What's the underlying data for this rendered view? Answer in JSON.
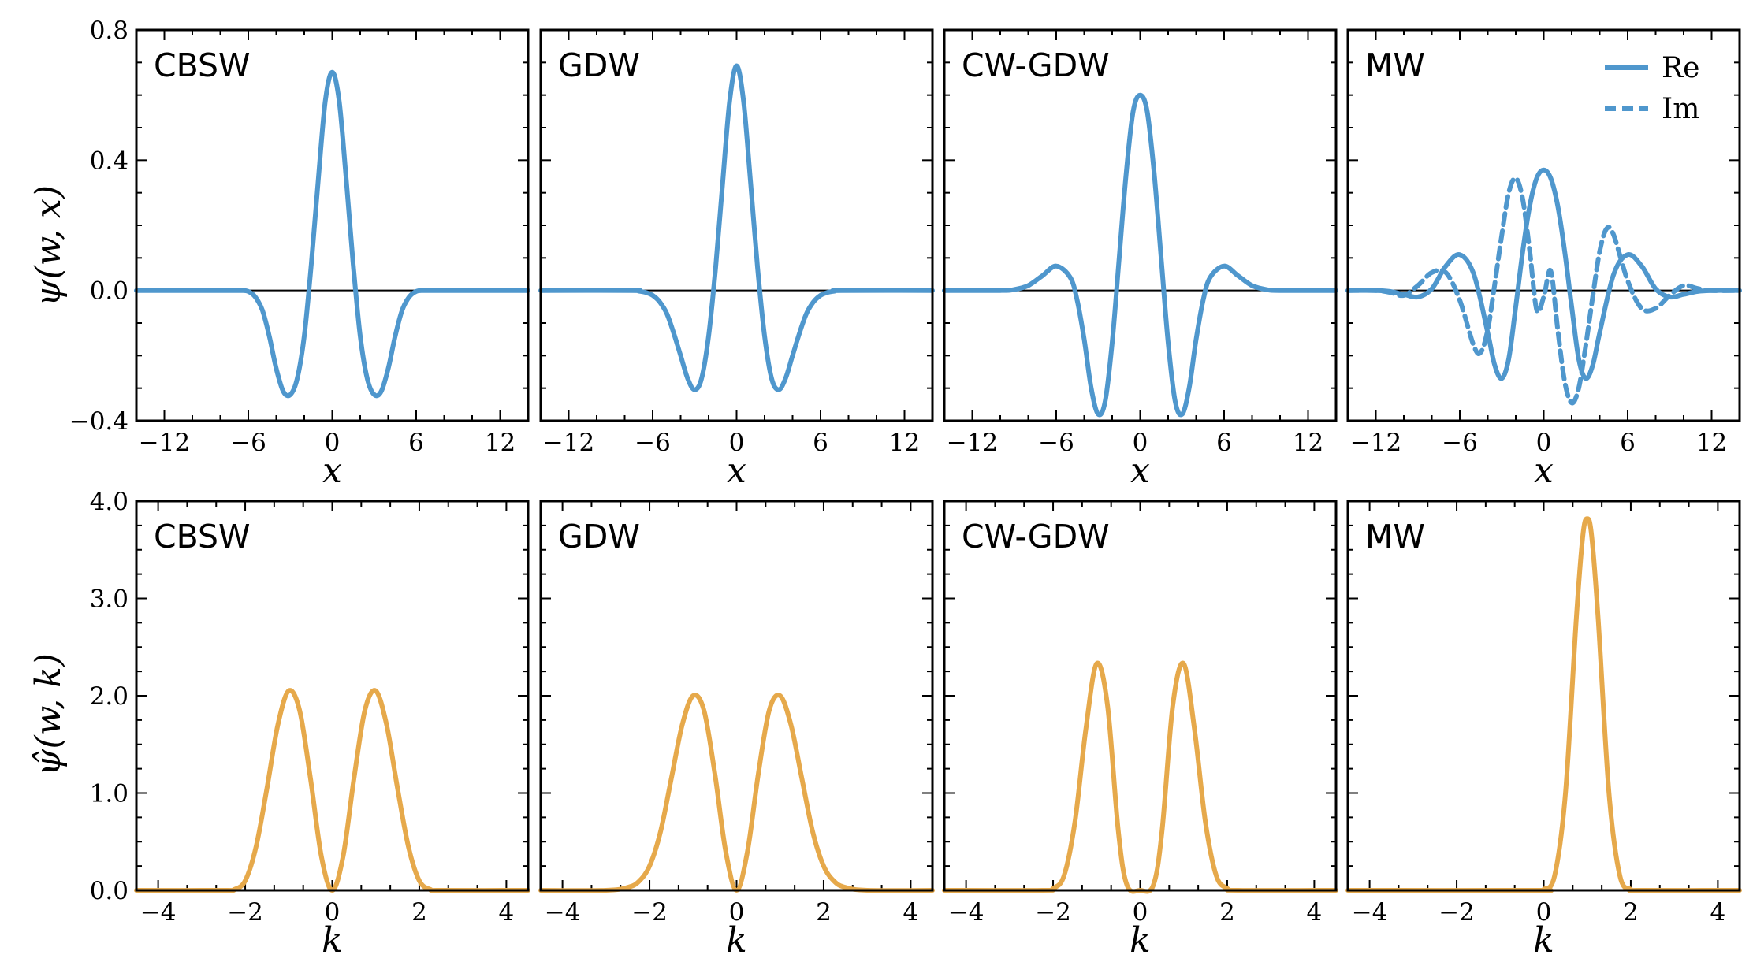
{
  "colors": {
    "wavelet": "#4f97cd",
    "spectrum": "#e6a94b"
  },
  "figure": {
    "row_ylabels": [
      "ψ(w, x)",
      "ψ̂(w, k)"
    ]
  },
  "chart_data": [
    {
      "type": "line",
      "title": "CBSW",
      "xlabel": "x",
      "ylabel": "ψ(w, x)",
      "xlim": [
        -14,
        14
      ],
      "ylim": [
        -0.4,
        0.8
      ],
      "xticks": [
        -12,
        -6,
        0,
        6,
        12
      ],
      "xtick_labels": [
        "−12",
        "−6",
        "0",
        "6",
        "12"
      ],
      "yticks": [
        -0.4,
        0.0,
        0.4,
        0.8
      ],
      "ytick_labels": [
        "−0.4",
        "0.0",
        "0.4",
        "0.8"
      ],
      "series": [
        {
          "style": "solid",
          "x": [
            -14,
            -7,
            -6.5,
            -6,
            -5.5,
            -5,
            -4.5,
            -4,
            -3.5,
            -3,
            -2.5,
            -2,
            -1.5,
            -1,
            -0.5,
            0,
            0.5,
            1,
            1.5,
            2,
            2.5,
            3,
            3.5,
            4,
            4.5,
            5,
            5.5,
            6,
            6.5,
            7,
            14
          ],
          "y": [
            0,
            0,
            0,
            -0.003,
            -0.02,
            -0.06,
            -0.14,
            -0.24,
            -0.31,
            -0.32,
            -0.27,
            -0.14,
            0.08,
            0.34,
            0.58,
            0.67,
            0.58,
            0.34,
            0.08,
            -0.14,
            -0.27,
            -0.32,
            -0.31,
            -0.24,
            -0.14,
            -0.06,
            -0.02,
            -0.003,
            0,
            0,
            0
          ]
        }
      ]
    },
    {
      "type": "line",
      "title": "GDW",
      "xlabel": "x",
      "ylabel": "",
      "xlim": [
        -14,
        14
      ],
      "ylim": [
        -0.4,
        0.8
      ],
      "xticks": [
        -12,
        -6,
        0,
        6,
        12
      ],
      "xtick_labels": [
        "−12",
        "−6",
        "0",
        "6",
        "12"
      ],
      "yticks": [
        -0.4,
        0.0,
        0.4,
        0.8
      ],
      "ytick_labels": [],
      "series": [
        {
          "style": "solid",
          "x": [
            -14,
            -7.5,
            -7,
            -6.5,
            -6,
            -5.5,
            -5,
            -4.5,
            -4,
            -3.5,
            -3,
            -2.5,
            -2,
            -1.5,
            -1,
            -0.5,
            0,
            0.5,
            1,
            1.5,
            2,
            2.5,
            3,
            3.5,
            4,
            4.5,
            5,
            5.5,
            6,
            6.5,
            7,
            7.5,
            14
          ],
          "y": [
            0,
            0,
            -0.002,
            -0.006,
            -0.015,
            -0.035,
            -0.07,
            -0.13,
            -0.2,
            -0.27,
            -0.305,
            -0.27,
            -0.14,
            0.07,
            0.33,
            0.58,
            0.69,
            0.58,
            0.33,
            0.07,
            -0.14,
            -0.27,
            -0.305,
            -0.27,
            -0.2,
            -0.13,
            -0.07,
            -0.035,
            -0.015,
            -0.006,
            -0.002,
            0,
            0
          ]
        }
      ]
    },
    {
      "type": "line",
      "title": "CW-GDW",
      "xlabel": "x",
      "ylabel": "",
      "xlim": [
        -14,
        14
      ],
      "ylim": [
        -0.4,
        0.8
      ],
      "xticks": [
        -12,
        -6,
        0,
        6,
        12
      ],
      "xtick_labels": [
        "−12",
        "−6",
        "0",
        "6",
        "12"
      ],
      "yticks": [
        -0.4,
        0.0,
        0.4,
        0.8
      ],
      "ytick_labels": [],
      "series": [
        {
          "style": "solid",
          "x": [
            -14,
            -10,
            -9,
            -8,
            -7,
            -6,
            -5,
            -4.5,
            -4,
            -3.5,
            -3,
            -2.5,
            -2,
            -1.5,
            -1,
            -0.5,
            0,
            0.5,
            1,
            1.5,
            2,
            2.5,
            3,
            3.5,
            4,
            4.5,
            5,
            6,
            7,
            8,
            9,
            10,
            14
          ],
          "y": [
            0,
            0,
            0.003,
            0.015,
            0.045,
            0.075,
            0.04,
            -0.03,
            -0.15,
            -0.3,
            -0.38,
            -0.34,
            -0.16,
            0.1,
            0.36,
            0.55,
            0.6,
            0.55,
            0.36,
            0.1,
            -0.16,
            -0.34,
            -0.38,
            -0.3,
            -0.15,
            -0.03,
            0.04,
            0.075,
            0.045,
            0.015,
            0.003,
            0,
            0
          ]
        }
      ]
    },
    {
      "type": "line",
      "title": "MW",
      "xlabel": "x",
      "ylabel": "",
      "xlim": [
        -14,
        14
      ],
      "ylim": [
        -0.4,
        0.8
      ],
      "xticks": [
        -12,
        -6,
        0,
        6,
        12
      ],
      "xtick_labels": [
        "−12",
        "−6",
        "0",
        "6",
        "12"
      ],
      "yticks": [
        -0.4,
        0.0,
        0.4,
        0.8
      ],
      "ytick_labels": [],
      "legend": {
        "position": "top-right",
        "entries": [
          {
            "label": "Re",
            "style": "solid"
          },
          {
            "label": "Im",
            "style": "dashed"
          }
        ]
      },
      "series": [
        {
          "name": "Re",
          "style": "solid",
          "x": [
            -14,
            -12,
            -11,
            -10,
            -9,
            -8,
            -7,
            -6,
            -5,
            -4,
            -3.5,
            -3,
            -2.5,
            -2,
            -1.5,
            -1,
            -0.5,
            0,
            0.5,
            1,
            1.5,
            2,
            2.5,
            3,
            3.5,
            4,
            5,
            6,
            7,
            8,
            9,
            10,
            11,
            12,
            14
          ],
          "y": [
            0,
            0,
            -0.003,
            -0.012,
            -0.02,
            0.005,
            0.075,
            0.11,
            0.05,
            -0.13,
            -0.23,
            -0.27,
            -0.21,
            -0.05,
            0.12,
            0.26,
            0.345,
            0.37,
            0.345,
            0.26,
            0.12,
            -0.05,
            -0.21,
            -0.27,
            -0.23,
            -0.13,
            0.05,
            0.11,
            0.075,
            0.005,
            -0.02,
            -0.012,
            -0.003,
            0,
            0
          ]
        },
        {
          "name": "Im",
          "style": "dashed",
          "x": [
            -14,
            -12,
            -11,
            -10,
            -9,
            -8,
            -7,
            -6,
            -5,
            -4.5,
            -4,
            -3.5,
            -3,
            -2.5,
            -2,
            -1.5,
            -1,
            -0.5,
            0,
            0.5,
            1,
            1.5,
            2,
            2.5,
            3,
            3.5,
            4,
            4.5,
            5,
            6,
            7,
            8,
            9,
            10,
            11,
            12,
            14
          ],
          "y": [
            0,
            0,
            -0.006,
            -0.015,
            0.015,
            0.055,
            0.055,
            -0.03,
            -0.17,
            -0.19,
            -0.12,
            0.02,
            0.17,
            0.3,
            0.345,
            0.28,
            0.12,
            -0.06,
            -0.02,
            0.06,
            -0.12,
            -0.28,
            -0.345,
            -0.3,
            -0.17,
            -0.02,
            0.12,
            0.19,
            0.17,
            0.03,
            -0.055,
            -0.055,
            -0.015,
            0.015,
            0.006,
            0,
            0
          ]
        }
      ]
    },
    {
      "type": "line",
      "title": "CBSW",
      "xlabel": "k",
      "ylabel": "ψ̂(w, k)",
      "xlim": [
        -4.5,
        4.5
      ],
      "ylim": [
        0,
        4.0
      ],
      "xticks": [
        -4,
        -2,
        0,
        2,
        4
      ],
      "xtick_labels": [
        "−4",
        "−2",
        "0",
        "2",
        "4"
      ],
      "yticks": [
        0,
        1,
        2,
        3,
        4
      ],
      "ytick_labels": [
        "0.0",
        "1.0",
        "2.0",
        "3.0",
        "4.0"
      ],
      "series": [
        {
          "style": "solid",
          "x": [
            -4.5,
            -2.5,
            -2.25,
            -2,
            -1.75,
            -1.5,
            -1.25,
            -1,
            -0.75,
            -0.5,
            -0.25,
            0,
            0.25,
            0.5,
            0.75,
            1,
            1.25,
            1.5,
            1.75,
            2,
            2.25,
            2.5,
            4.5
          ],
          "y": [
            0,
            0,
            0.01,
            0.1,
            0.45,
            1.05,
            1.7,
            2.05,
            1.85,
            1.15,
            0.35,
            0,
            0.35,
            1.15,
            1.85,
            2.05,
            1.7,
            1.05,
            0.45,
            0.1,
            0.01,
            0,
            0
          ]
        }
      ]
    },
    {
      "type": "line",
      "title": "GDW",
      "xlabel": "k",
      "ylabel": "",
      "xlim": [
        -4.5,
        4.5
      ],
      "ylim": [
        0,
        4.0
      ],
      "xticks": [
        -4,
        -2,
        0,
        2,
        4
      ],
      "xtick_labels": [
        "−4",
        "−2",
        "0",
        "2",
        "4"
      ],
      "yticks": [
        0,
        1,
        2,
        3,
        4
      ],
      "ytick_labels": [],
      "series": [
        {
          "style": "solid",
          "x": [
            -4.5,
            -3,
            -2.5,
            -2.25,
            -2,
            -1.75,
            -1.5,
            -1.25,
            -1,
            -0.75,
            -0.5,
            -0.25,
            0,
            0.25,
            0.5,
            0.75,
            1,
            1.25,
            1.5,
            1.75,
            2,
            2.25,
            2.5,
            3,
            4.5
          ],
          "y": [
            0,
            0,
            0.03,
            0.09,
            0.25,
            0.6,
            1.15,
            1.7,
            2.0,
            1.85,
            1.2,
            0.4,
            0,
            0.4,
            1.2,
            1.85,
            2.0,
            1.7,
            1.15,
            0.6,
            0.25,
            0.09,
            0.03,
            0,
            0
          ]
        }
      ]
    },
    {
      "type": "line",
      "title": "CW-GDW",
      "xlabel": "k",
      "ylabel": "",
      "xlim": [
        -4.5,
        4.5
      ],
      "ylim": [
        0,
        4.0
      ],
      "xticks": [
        -4,
        -2,
        0,
        2,
        4
      ],
      "xtick_labels": [
        "−4",
        "−2",
        "0",
        "2",
        "4"
      ],
      "yticks": [
        0,
        1,
        2,
        3,
        4
      ],
      "ytick_labels": [],
      "series": [
        {
          "style": "solid",
          "x": [
            -4.5,
            -2.25,
            -2,
            -1.75,
            -1.5,
            -1.25,
            -1,
            -0.75,
            -0.5,
            -0.3,
            0,
            0.3,
            0.5,
            0.75,
            1,
            1.25,
            1.5,
            1.75,
            2,
            2.25,
            4.5
          ],
          "y": [
            0,
            0,
            0.02,
            0.15,
            0.7,
            1.65,
            2.33,
            1.9,
            0.6,
            0.05,
            0,
            0.05,
            0.6,
            1.9,
            2.33,
            1.65,
            0.7,
            0.15,
            0.02,
            0,
            0
          ]
        }
      ]
    },
    {
      "type": "line",
      "title": "MW",
      "xlabel": "k",
      "ylabel": "",
      "xlim": [
        -4.5,
        4.5
      ],
      "ylim": [
        0,
        4.0
      ],
      "xticks": [
        -4,
        -2,
        0,
        2,
        4
      ],
      "xtick_labels": [
        "−4",
        "−2",
        "0",
        "2",
        "4"
      ],
      "yticks": [
        0,
        1,
        2,
        3,
        4
      ],
      "ytick_labels": [],
      "series": [
        {
          "style": "solid",
          "x": [
            -4.5,
            -0.2,
            0,
            0.25,
            0.5,
            0.75,
            0.9,
            1,
            1.1,
            1.25,
            1.5,
            1.75,
            2,
            2.2,
            4.5
          ],
          "y": [
            0,
            0,
            0.01,
            0.15,
            1.0,
            2.8,
            3.65,
            3.82,
            3.65,
            2.8,
            1.0,
            0.15,
            0.01,
            0,
            0
          ]
        }
      ]
    }
  ]
}
